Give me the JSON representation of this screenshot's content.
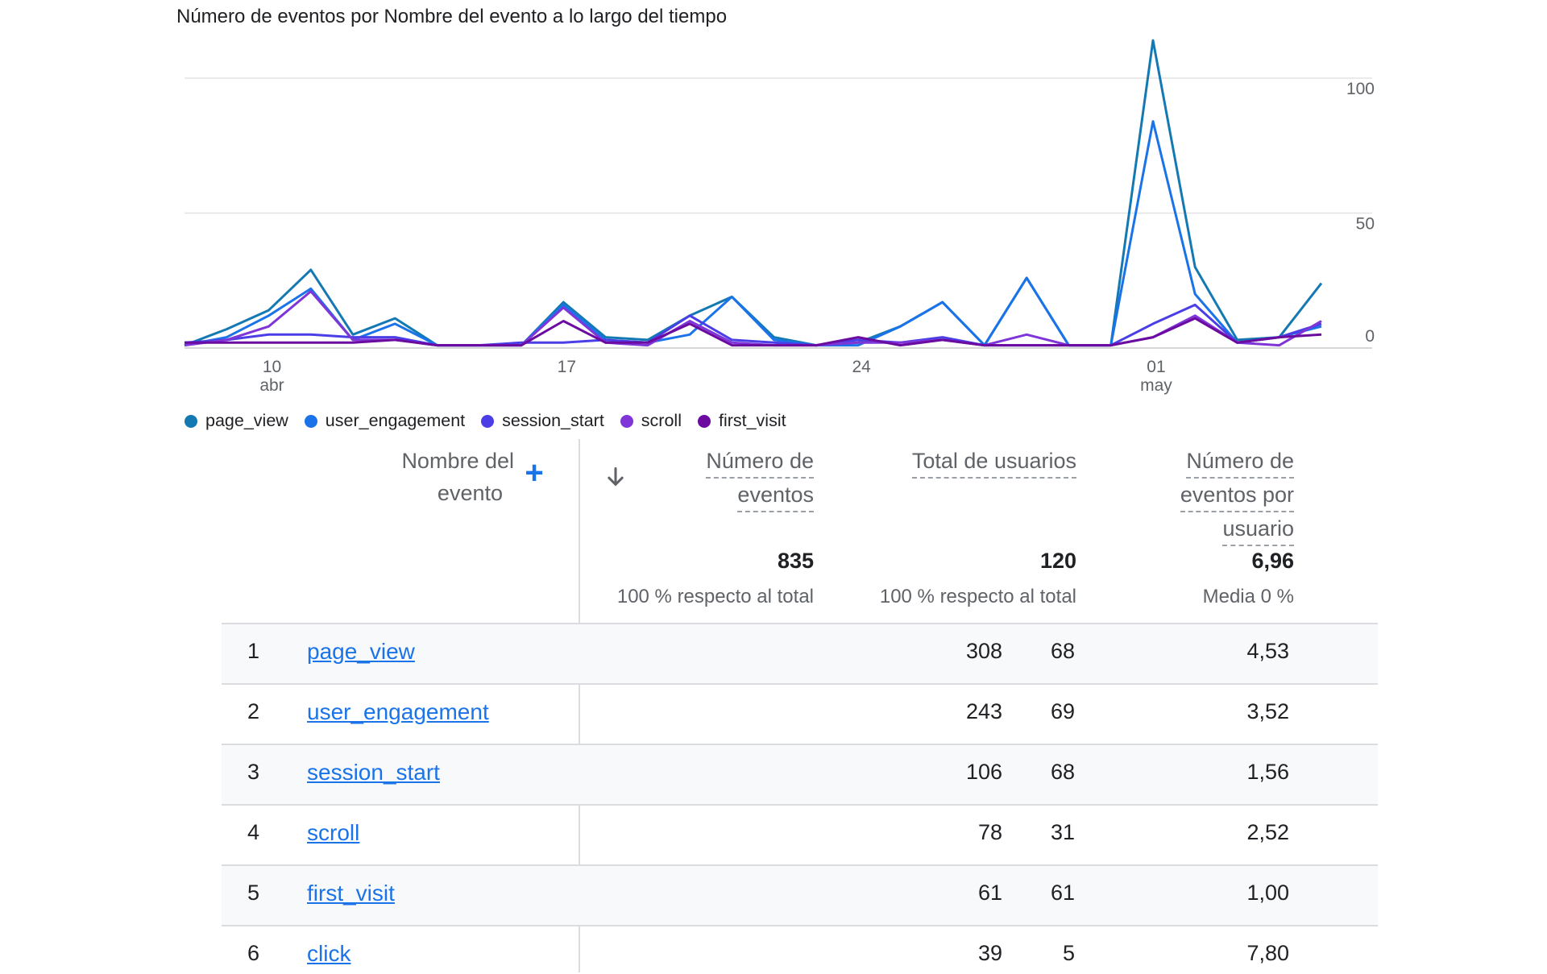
{
  "chart_title": "Número de eventos por Nombre del evento a lo largo del tiempo",
  "chart_data": {
    "type": "line",
    "title": "Número de eventos por Nombre del evento a lo largo del tiempo",
    "x_tick_labels": [
      {
        "day": "10",
        "month": "abr",
        "index": 2
      },
      {
        "day": "17",
        "month": "",
        "index": 9
      },
      {
        "day": "24",
        "month": "",
        "index": 16
      },
      {
        "day": "01",
        "month": "may",
        "index": 23
      }
    ],
    "y_tick_labels": [
      "100",
      "50",
      "0"
    ],
    "y_ticks": [
      100,
      50,
      0
    ],
    "ylim": [
      0,
      100
    ],
    "series": [
      {
        "name": "page_view",
        "color": "#1479b3",
        "values": [
          1,
          7,
          14,
          29,
          5,
          11,
          1,
          1,
          1,
          17,
          4,
          3,
          12,
          19,
          4,
          1,
          2,
          8,
          17,
          1,
          26,
          1,
          1,
          114,
          30,
          3,
          4,
          24
        ]
      },
      {
        "name": "user_engagement",
        "color": "#1a73e8",
        "values": [
          1,
          4,
          12,
          22,
          3,
          9,
          1,
          1,
          1,
          16,
          3,
          2,
          5,
          19,
          3,
          1,
          1,
          8,
          17,
          1,
          26,
          1,
          1,
          84,
          20,
          2,
          4,
          8
        ]
      },
      {
        "name": "session_start",
        "color": "#4b3ee6",
        "values": [
          2,
          3,
          5,
          5,
          4,
          4,
          1,
          1,
          2,
          2,
          3,
          2,
          12,
          3,
          2,
          1,
          3,
          2,
          4,
          1,
          1,
          1,
          1,
          9,
          16,
          2,
          4,
          9
        ]
      },
      {
        "name": "scroll",
        "color": "#7f35d8",
        "values": [
          1,
          3,
          8,
          21,
          3,
          3,
          1,
          1,
          1,
          15,
          2,
          1,
          10,
          2,
          1,
          1,
          2,
          2,
          3,
          1,
          5,
          1,
          1,
          4,
          12,
          2,
          1,
          10
        ]
      },
      {
        "name": "first_visit",
        "color": "#6b0ba0",
        "values": [
          2,
          2,
          2,
          2,
          2,
          3,
          1,
          1,
          1,
          10,
          2,
          2,
          9,
          1,
          1,
          1,
          4,
          1,
          3,
          1,
          1,
          1,
          1,
          4,
          11,
          2,
          4,
          5
        ]
      }
    ]
  },
  "legend": [
    {
      "label": "page_view",
      "color": "#1479b3"
    },
    {
      "label": "user_engagement",
      "color": "#1a73e8"
    },
    {
      "label": "session_start",
      "color": "#4b3ee6"
    },
    {
      "label": "scroll",
      "color": "#7f35d8"
    },
    {
      "label": "first_visit",
      "color": "#6b0ba0"
    }
  ],
  "table": {
    "headers": {
      "name_l1": "Nombre del",
      "name_l2": "evento",
      "events_l1": "Número de",
      "events_l2": "eventos",
      "users": "Total de usuarios",
      "per_user_l1": "Número de",
      "per_user_l2": "eventos por",
      "per_user_l3": "usuario"
    },
    "totals": {
      "events": "835",
      "events_sub": "100 % respecto al total",
      "users": "120",
      "users_sub": "100 % respecto al total",
      "per_user": "6,96",
      "per_user_sub": "Media 0 %"
    },
    "rows": [
      {
        "idx": "1",
        "name": "page_view",
        "events": "308",
        "users": "68",
        "per_user": "4,53"
      },
      {
        "idx": "2",
        "name": "user_engagement",
        "events": "243",
        "users": "69",
        "per_user": "3,52"
      },
      {
        "idx": "3",
        "name": "session_start",
        "events": "106",
        "users": "68",
        "per_user": "1,56"
      },
      {
        "idx": "4",
        "name": "scroll",
        "events": "78",
        "users": "31",
        "per_user": "2,52"
      },
      {
        "idx": "5",
        "name": "first_visit",
        "events": "61",
        "users": "61",
        "per_user": "1,00"
      },
      {
        "idx": "6",
        "name": "click",
        "events": "39",
        "users": "5",
        "per_user": "7,80"
      }
    ]
  }
}
